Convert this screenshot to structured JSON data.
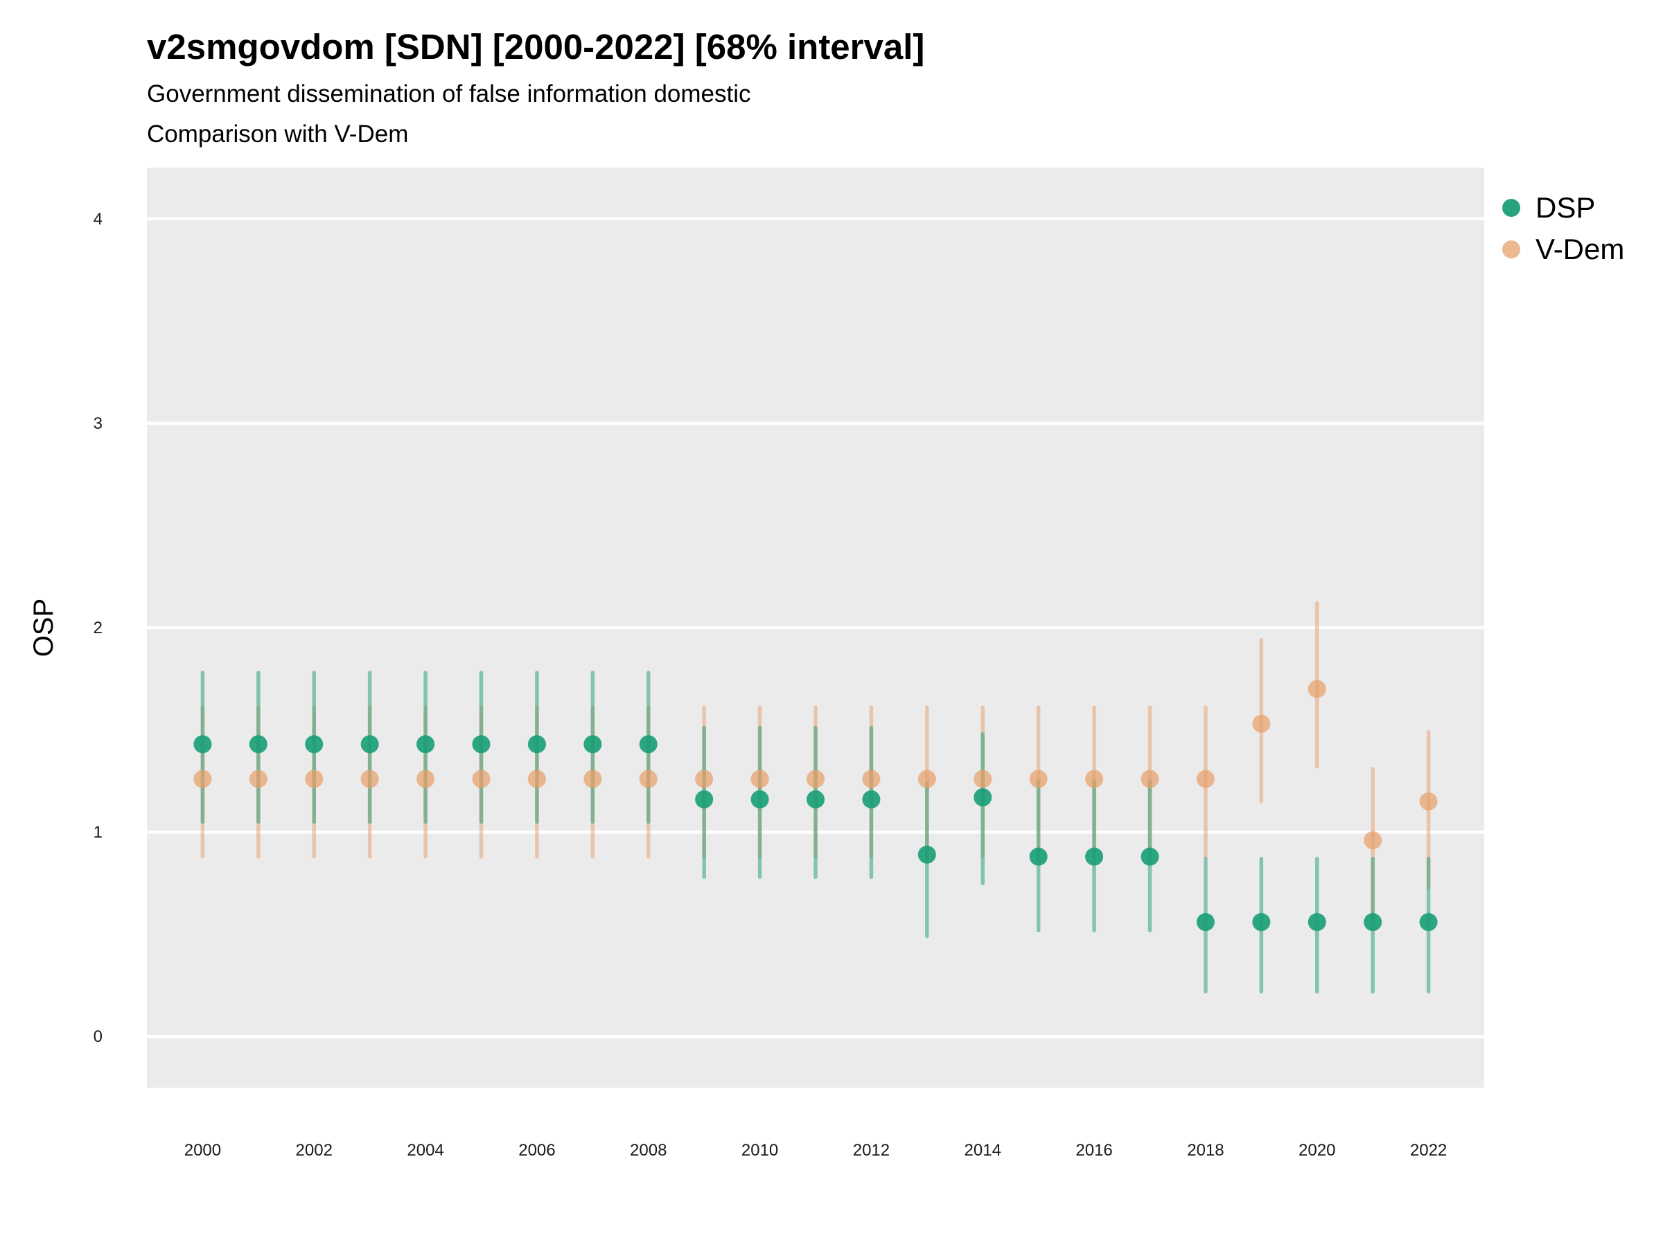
{
  "chart_data": {
    "type": "scatter",
    "title": "v2smgovdom [SDN] [2000-2022] [68% interval]",
    "subtitle": "Government dissemination of false information domestic",
    "subtitle2": "Comparison with V-Dem",
    "xlabel": "",
    "ylabel": "OSP",
    "ylim": [
      -0.25,
      4.25
    ],
    "yticks": [
      0,
      1,
      2,
      3,
      4
    ],
    "xticks": [
      2000,
      2002,
      2004,
      2006,
      2008,
      2010,
      2012,
      2014,
      2016,
      2018,
      2020,
      2022
    ],
    "x": [
      2000,
      2001,
      2002,
      2003,
      2004,
      2005,
      2006,
      2007,
      2008,
      2009,
      2010,
      2011,
      2012,
      2013,
      2014,
      2015,
      2016,
      2017,
      2018,
      2019,
      2020,
      2021,
      2022
    ],
    "grid": true,
    "legend_position": "right",
    "series": [
      {
        "name": "DSP",
        "color": "#1b9e77",
        "values": [
          1.43,
          1.43,
          1.43,
          1.43,
          1.43,
          1.43,
          1.43,
          1.43,
          1.43,
          1.16,
          1.16,
          1.16,
          1.16,
          0.89,
          1.17,
          0.88,
          0.88,
          0.88,
          0.56,
          0.56,
          0.56,
          0.56,
          0.56
        ],
        "lower": [
          1.05,
          1.05,
          1.05,
          1.05,
          1.05,
          1.05,
          1.05,
          1.05,
          1.05,
          0.78,
          0.78,
          0.78,
          0.78,
          0.49,
          0.75,
          0.52,
          0.52,
          0.52,
          0.22,
          0.22,
          0.22,
          0.22,
          0.22
        ],
        "upper": [
          1.78,
          1.78,
          1.78,
          1.78,
          1.78,
          1.78,
          1.78,
          1.78,
          1.78,
          1.51,
          1.51,
          1.51,
          1.51,
          1.24,
          1.48,
          1.25,
          1.25,
          1.25,
          0.87,
          0.87,
          0.87,
          0.87,
          0.87
        ]
      },
      {
        "name": "V-Dem",
        "color": "#e6a06a",
        "values": [
          1.26,
          1.26,
          1.26,
          1.26,
          1.26,
          1.26,
          1.26,
          1.26,
          1.26,
          1.26,
          1.26,
          1.26,
          1.26,
          1.26,
          1.26,
          1.26,
          1.26,
          1.26,
          1.26,
          1.53,
          1.7,
          0.96,
          1.15
        ],
        "lower": [
          0.88,
          0.88,
          0.88,
          0.88,
          0.88,
          0.88,
          0.88,
          0.88,
          0.88,
          0.88,
          0.88,
          0.88,
          0.88,
          0.88,
          0.88,
          0.88,
          0.88,
          0.88,
          0.88,
          1.15,
          1.32,
          0.58,
          0.73
        ],
        "upper": [
          1.61,
          1.61,
          1.61,
          1.61,
          1.61,
          1.61,
          1.61,
          1.61,
          1.61,
          1.61,
          1.61,
          1.61,
          1.61,
          1.61,
          1.61,
          1.61,
          1.61,
          1.61,
          1.61,
          1.94,
          2.12,
          1.31,
          1.49
        ]
      }
    ]
  }
}
